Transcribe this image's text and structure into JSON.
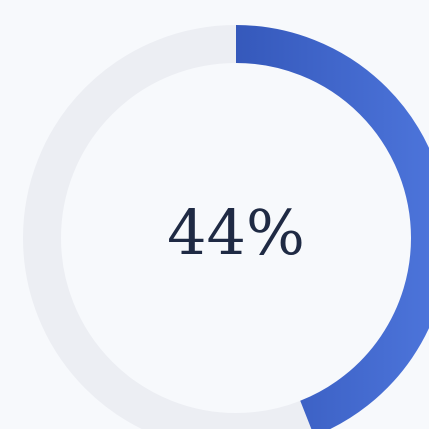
{
  "chart_data": {
    "type": "donut",
    "values": [
      44
    ],
    "value_labels": [
      "44%"
    ],
    "lim": [
      0,
      100
    ],
    "color": "#2f52bd",
    "track_color": "#eceef3"
  }
}
